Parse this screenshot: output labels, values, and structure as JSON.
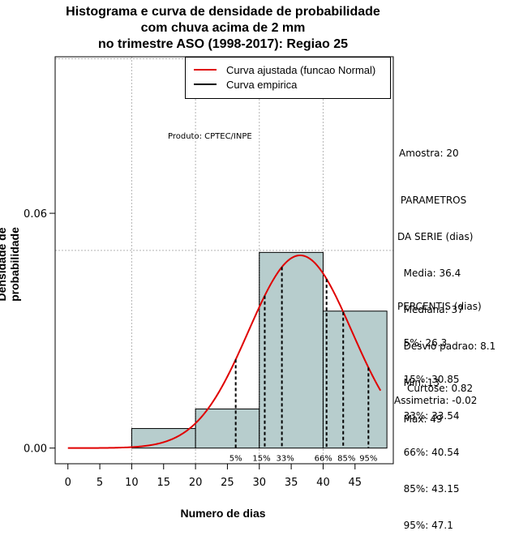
{
  "title": {
    "line1": "Histograma e curva de densidade de probabilidade",
    "line2": "com chuva acima de 2 mm",
    "line3": "no trimestre ASO (1998-2017): Regiao 25"
  },
  "legend": {
    "fitted": "Curva ajustada (funcao Normal)",
    "empirical": "Curva empirica"
  },
  "produto": "Produto: CPTEC/INPE",
  "amostra": "Amostra: 20",
  "parametros": {
    "header1": " PARAMETROS",
    "header2": "DA SERIE (dias)",
    "media": "  Media: 36.4",
    "mediana": "  Mediana: 37",
    "desvio": "  Desvio padrao: 8.1",
    "min": "  Min: 13",
    "max": "  Max: 49"
  },
  "percentis": {
    "header": "PERCENTIS (dias)",
    "p5": "  5%: 26.3",
    "p15": "  15%: 30.85",
    "p33": "  33%: 33.54",
    "p66": "  66%: 40.54",
    "p85": "  85%: 43.15",
    "p95": "  95%: 47.1"
  },
  "curtose": "Curtose: 0.82",
  "assimetria": "Assimetria: -0.02",
  "colors": {
    "bar_fill": "#b7cdcd",
    "curve": "#e00000",
    "grid": "#b4b4b4"
  },
  "chart_data": {
    "type": "histogram",
    "title": "Histograma e curva de densidade de probabilidade com chuva acima de 2 mm no trimestre ASO (1998-2017): Regiao 25",
    "xlabel": "Numero de dias",
    "ylabel": "Densidade de probabilidade",
    "xlim": [
      -2,
      51
    ],
    "ylim": [
      -0.004,
      0.1
    ],
    "x_ticks": [
      0,
      5,
      10,
      15,
      20,
      25,
      30,
      35,
      40,
      45
    ],
    "y_ticks": [
      0.0,
      0.06
    ],
    "y_tick_labels": [
      "0.00",
      "0.06"
    ],
    "grid_x": [
      10,
      20,
      30,
      40
    ],
    "grid_y": [
      0.0505,
      0.0995
    ],
    "bins": [
      {
        "from": 10,
        "to": 20,
        "density": 0.005
      },
      {
        "from": 20,
        "to": 30,
        "density": 0.01
      },
      {
        "from": 30,
        "to": 40,
        "density": 0.05
      },
      {
        "from": 40,
        "to": 50,
        "density": 0.035
      }
    ],
    "normal_fit": {
      "mean": 36.4,
      "sd": 8.1,
      "x_range": [
        0,
        49
      ]
    },
    "percentiles": [
      {
        "label": "5%",
        "value": 26.3
      },
      {
        "label": "15%",
        "value": 30.85
      },
      {
        "label": "33%",
        "value": 33.54
      },
      {
        "label": "66%",
        "value": 40.54
      },
      {
        "label": "85%",
        "value": 43.15
      },
      {
        "label": "95%",
        "value": 47.1
      }
    ]
  }
}
